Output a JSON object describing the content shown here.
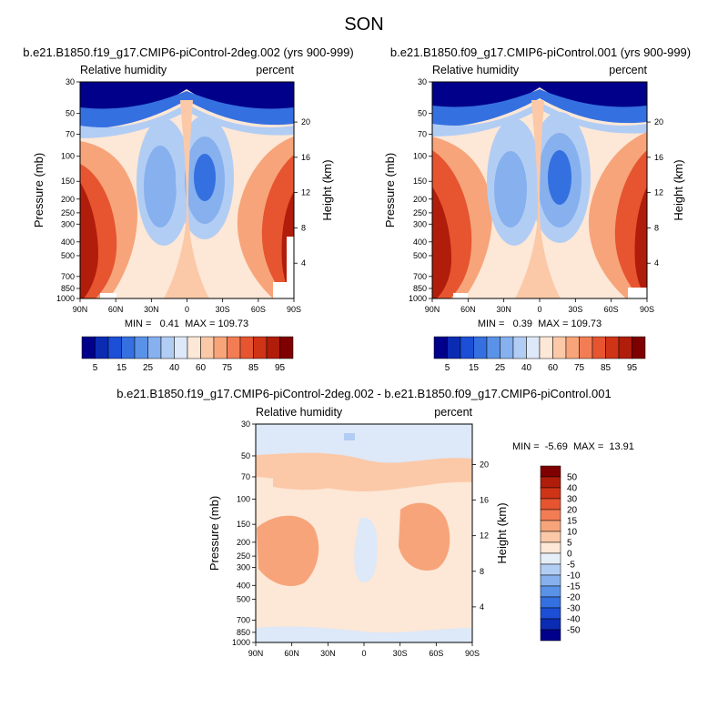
{
  "figure": {
    "season": "SON",
    "diff_title": "b.e21.B1850.f19_g17.CMIP6-piControl-2deg.002 - b.e21.B1850.f09_g17.CMIP6-piControl.001"
  },
  "chart_data": [
    {
      "type": "heatmap",
      "title": "b.e21.B1850.f19_g17.CMIP6-piControl-2deg.002 (yrs 900-999)",
      "left_label": "Relative humidity",
      "right_label": "percent",
      "ylabel": "Pressure (mb)",
      "ylabel_right": "Height (km)",
      "x_ticks": [
        "90N",
        "60N",
        "30N",
        "0",
        "30S",
        "60S",
        "90S"
      ],
      "y_ticks": [
        "30",
        "50",
        "70",
        "100",
        "150",
        "200",
        "250",
        "300",
        "400",
        "500",
        "700",
        "850",
        "1000"
      ],
      "height_ticks": [
        "20",
        "16",
        "12",
        "8",
        "4"
      ],
      "stats_text": "MIN =   0.41  MAX = 109.73",
      "min": 0.41,
      "max": 109.73
    },
    {
      "type": "heatmap",
      "title": "b.e21.B1850.f09_g17.CMIP6-piControl.001 (yrs 900-999)",
      "left_label": "Relative humidity",
      "right_label": "percent",
      "ylabel": "Pressure (mb)",
      "ylabel_right": "Height (km)",
      "x_ticks": [
        "90N",
        "60N",
        "30N",
        "0",
        "30S",
        "60S",
        "90S"
      ],
      "y_ticks": [
        "30",
        "50",
        "70",
        "100",
        "150",
        "200",
        "250",
        "300",
        "400",
        "500",
        "700",
        "850",
        "1000"
      ],
      "height_ticks": [
        "20",
        "16",
        "12",
        "8",
        "4"
      ],
      "stats_text": "MIN =   0.39  MAX = 109.73",
      "min": 0.39,
      "max": 109.73
    },
    {
      "type": "heatmap",
      "title": "b.e21.B1850.f19_g17.CMIP6-piControl-2deg.002 - b.e21.B1850.f09_g17.CMIP6-piControl.001",
      "left_label": "Relative humidity",
      "right_label": "percent",
      "ylabel": "Pressure (mb)",
      "ylabel_right": "Height (km)",
      "x_ticks": [
        "90N",
        "60N",
        "30N",
        "0",
        "30S",
        "60S",
        "90S"
      ],
      "y_ticks": [
        "30",
        "50",
        "70",
        "100",
        "150",
        "200",
        "250",
        "300",
        "400",
        "500",
        "700",
        "850",
        "1000"
      ],
      "height_ticks": [
        "20",
        "16",
        "12",
        "8",
        "4"
      ],
      "stats_text": "MIN =  -5.69  MAX =  13.91",
      "min": -5.69,
      "max": 13.91
    }
  ],
  "colorbar_abs": {
    "colors": [
      "#00008b",
      "#0b2bb3",
      "#1c4fd6",
      "#3570e0",
      "#5a92e8",
      "#86b0ee",
      "#b2cdf4",
      "#dde8f8",
      "#fde7d6",
      "#fbc9a8",
      "#f7a47a",
      "#f27d55",
      "#e65530",
      "#cf3417",
      "#b01d0a",
      "#7f0000"
    ],
    "labels": [
      "5",
      "15",
      "25",
      "40",
      "60",
      "75",
      "85",
      "95"
    ]
  },
  "colorbar_diff": {
    "colors": [
      "#7f0000",
      "#b01d0a",
      "#cf3417",
      "#e65530",
      "#f27d55",
      "#f7a47a",
      "#fbc9a8",
      "#fde7d6",
      "#e6eef8",
      "#b2cdf4",
      "#86b0ee",
      "#5a92e8",
      "#3570e0",
      "#1c4fd6",
      "#0b2bb3",
      "#00008b"
    ],
    "labels": [
      "50",
      "40",
      "30",
      "20",
      "15",
      "10",
      "5",
      "0",
      "-5",
      "-10",
      "-15",
      "-20",
      "-30",
      "-40",
      "-50"
    ]
  }
}
